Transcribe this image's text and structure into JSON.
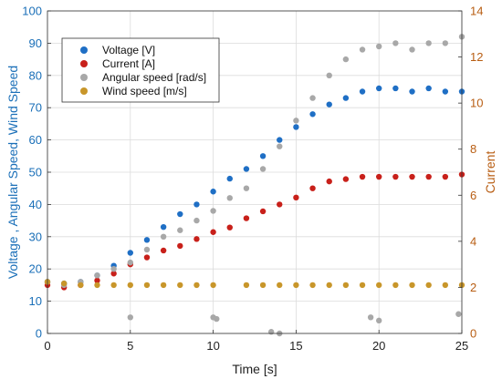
{
  "chart_data": {
    "type": "scatter",
    "xlabel": "Time [s]",
    "ylabel_left": "Voltage , Angular Speed, Wind Speed",
    "ylabel_right": "Current",
    "xlim": [
      0,
      25
    ],
    "ylim_left": [
      0,
      100
    ],
    "ylim_right": [
      0,
      14
    ],
    "x_ticks": [
      0,
      5,
      10,
      15,
      20,
      25
    ],
    "y_ticks_left": [
      0,
      10,
      20,
      30,
      40,
      50,
      60,
      70,
      80,
      90,
      100
    ],
    "y_ticks_right": [
      0,
      2,
      4,
      6,
      8,
      10,
      12,
      14
    ],
    "grid": true,
    "legend_position": "upper-left",
    "series": [
      {
        "name": "Voltage [V]",
        "axis": "left",
        "color": "#1f6fc5",
        "points": [
          [
            0,
            16
          ],
          [
            1,
            15.5
          ],
          [
            2,
            16
          ],
          [
            3,
            18
          ],
          [
            4,
            21
          ],
          [
            5,
            25
          ],
          [
            6,
            29
          ],
          [
            7,
            33
          ],
          [
            8,
            37
          ],
          [
            9,
            40
          ],
          [
            10,
            44
          ],
          [
            11,
            48
          ],
          [
            12,
            51
          ],
          [
            13,
            55
          ],
          [
            14,
            60
          ],
          [
            15,
            64
          ],
          [
            16,
            68
          ],
          [
            17,
            71
          ],
          [
            18,
            73
          ],
          [
            19,
            75
          ],
          [
            20,
            76
          ],
          [
            21,
            76
          ],
          [
            22,
            75
          ],
          [
            23,
            76
          ],
          [
            24,
            75
          ],
          [
            25,
            75
          ]
        ]
      },
      {
        "name": "Current [A]",
        "axis": "right",
        "color": "#c8201a",
        "points": [
          [
            0,
            2.1
          ],
          [
            1,
            2.0
          ],
          [
            2,
            2.1
          ],
          [
            3,
            2.3
          ],
          [
            4,
            2.6
          ],
          [
            5,
            3.0
          ],
          [
            6,
            3.3
          ],
          [
            7,
            3.6
          ],
          [
            8,
            3.8
          ],
          [
            9,
            4.1
          ],
          [
            10,
            4.4
          ],
          [
            11,
            4.6
          ],
          [
            12,
            5.0
          ],
          [
            13,
            5.3
          ],
          [
            14,
            5.6
          ],
          [
            15,
            5.9
          ],
          [
            16,
            6.3
          ],
          [
            17,
            6.6
          ],
          [
            18,
            6.7
          ],
          [
            19,
            6.8
          ],
          [
            20,
            6.8
          ],
          [
            21,
            6.8
          ],
          [
            22,
            6.8
          ],
          [
            23,
            6.8
          ],
          [
            24,
            6.8
          ],
          [
            25,
            6.9
          ]
        ]
      },
      {
        "name": "Angular speed [rad/s]",
        "axis": "left",
        "color": "#a8a8a8",
        "points": [
          [
            0,
            16
          ],
          [
            1,
            15
          ],
          [
            2,
            16
          ],
          [
            3,
            18
          ],
          [
            4,
            20
          ],
          [
            5,
            22
          ],
          [
            6,
            26
          ],
          [
            7,
            30
          ],
          [
            8,
            32
          ],
          [
            9,
            35
          ],
          [
            10,
            38
          ],
          [
            11,
            42
          ],
          [
            12,
            45
          ],
          [
            13,
            51
          ],
          [
            14,
            58
          ],
          [
            15,
            66
          ],
          [
            16,
            73
          ],
          [
            17,
            80
          ],
          [
            18,
            85
          ],
          [
            19,
            88
          ],
          [
            20,
            89
          ],
          [
            21,
            90
          ],
          [
            22,
            88
          ],
          [
            23,
            90
          ],
          [
            24,
            90
          ],
          [
            25,
            92
          ]
        ]
      },
      {
        "name": "Wind speed [m/s]",
        "axis": "left",
        "color": "#c8962a",
        "points": [
          [
            0,
            16
          ],
          [
            1,
            15.5
          ],
          [
            2,
            15
          ],
          [
            3,
            15
          ],
          [
            4,
            15
          ],
          [
            5,
            15
          ],
          [
            6,
            15
          ],
          [
            7,
            15
          ],
          [
            8,
            15
          ],
          [
            9,
            15
          ],
          [
            10,
            15
          ],
          [
            12,
            15
          ],
          [
            13,
            15
          ],
          [
            14,
            15
          ],
          [
            15,
            15
          ],
          [
            16,
            15
          ],
          [
            17,
            15
          ],
          [
            18,
            15
          ],
          [
            19,
            15
          ],
          [
            20,
            15
          ],
          [
            21,
            15
          ],
          [
            22,
            15
          ],
          [
            23,
            15
          ],
          [
            24,
            15
          ],
          [
            25,
            15
          ]
        ]
      }
    ],
    "outliers": [
      {
        "series": "Angular speed [rad/s]",
        "points": [
          [
            5,
            5
          ],
          [
            10,
            5
          ],
          [
            10.2,
            4.5
          ],
          [
            13.5,
            0.5
          ],
          [
            14,
            0
          ],
          [
            19.5,
            5
          ],
          [
            20,
            4
          ],
          [
            24.8,
            6
          ]
        ]
      }
    ]
  }
}
